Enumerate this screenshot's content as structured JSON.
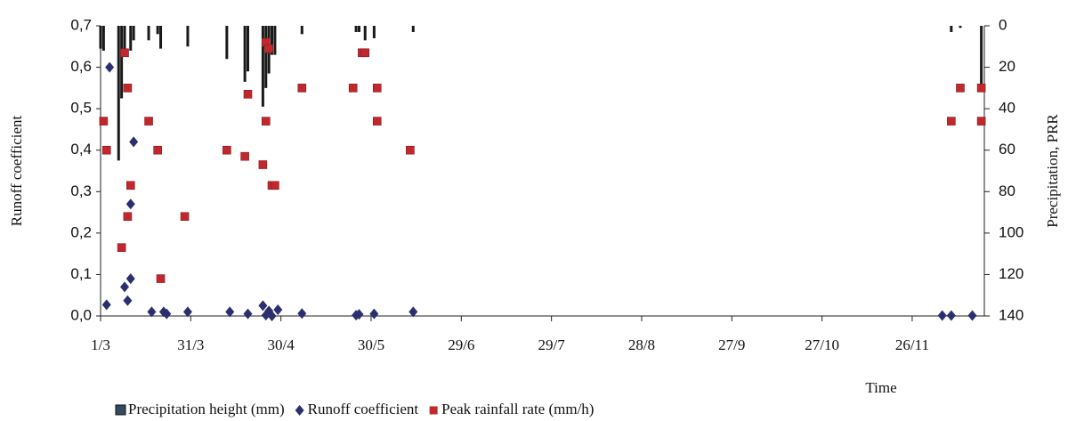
{
  "chart_data": {
    "type": "combo",
    "ylabel": "Runoff coefficient",
    "y2label": "Precipitation, PRR",
    "xlabel": "Time",
    "xlim": [
      0,
      294
    ],
    "xticks": [
      {
        "value": 0,
        "label": "1/3"
      },
      {
        "value": 30,
        "label": "31/3"
      },
      {
        "value": 60,
        "label": "30/4"
      },
      {
        "value": 90,
        "label": "30/5"
      },
      {
        "value": 120,
        "label": "29/6"
      },
      {
        "value": 150,
        "label": "29/7"
      },
      {
        "value": 180,
        "label": "28/8"
      },
      {
        "value": 210,
        "label": "27/9"
      },
      {
        "value": 240,
        "label": "27/10"
      },
      {
        "value": 270,
        "label": "26/11"
      }
    ],
    "ylim": [
      0,
      0.7
    ],
    "yticks": [
      {
        "value": 0,
        "label": "0,0"
      },
      {
        "value": 0.1,
        "label": "0,1"
      },
      {
        "value": 0.2,
        "label": "0,2"
      },
      {
        "value": 0.3,
        "label": "0,3"
      },
      {
        "value": 0.4,
        "label": "0,4"
      },
      {
        "value": 0.5,
        "label": "0,5"
      },
      {
        "value": 0.6,
        "label": "0,6"
      },
      {
        "value": 0.7,
        "label": "0,7"
      }
    ],
    "y2lim": [
      0,
      140
    ],
    "y2_inverted": true,
    "y2ticks": [
      0,
      20,
      40,
      60,
      80,
      100,
      120,
      140
    ],
    "series": [
      {
        "name": "Precipitation height (mm)",
        "type": "bar",
        "axis": "y2",
        "color": "#1a1a1a",
        "legend_color": "#34495e",
        "x": [
          0,
          1,
          6,
          7,
          8,
          10,
          11,
          16,
          19,
          20,
          29,
          42,
          48,
          49,
          54,
          55,
          56,
          57,
          58,
          67,
          85,
          86,
          88,
          91,
          104,
          283,
          286,
          293
        ],
        "values": [
          11,
          12,
          65,
          35,
          13,
          12,
          7,
          7,
          4,
          11,
          10,
          16,
          27,
          22,
          39,
          30,
          23,
          14,
          14,
          4,
          3,
          3,
          7,
          6,
          3,
          3,
          1,
          30
        ]
      },
      {
        "name": "Runoff coefficient",
        "type": "scatter",
        "marker": "diamond",
        "color": "#2b2f6e",
        "x": [
          2,
          3,
          8,
          9,
          10,
          10,
          11,
          17,
          21,
          22,
          29,
          43,
          49,
          54,
          55,
          56,
          57,
          59,
          67,
          85,
          86,
          91,
          104,
          280,
          283,
          290
        ],
        "values": [
          0.027,
          0.6,
          0.07,
          0.037,
          0.27,
          0.09,
          0.42,
          0.01,
          0.01,
          0.005,
          0.01,
          0.01,
          0.005,
          0.025,
          0.002,
          0.012,
          0,
          0.015,
          0.006,
          0.002,
          0.004,
          0.005,
          0.01,
          0.001,
          0.001,
          0.001
        ]
      },
      {
        "name": "Peak rainfall rate (mm/h)",
        "type": "scatter",
        "marker": "square",
        "axis": "y2",
        "color": "#c0282d",
        "x": [
          1,
          2,
          7,
          8,
          9,
          9,
          10,
          16,
          19,
          20,
          28,
          42,
          48,
          49,
          54,
          55,
          55,
          56,
          57,
          58,
          67,
          84,
          87,
          88,
          92,
          92,
          103,
          283,
          286,
          293,
          293
        ],
        "values": [
          46,
          60,
          107,
          13,
          30,
          92,
          77,
          46,
          60,
          122,
          92,
          60,
          63,
          33,
          67,
          8,
          46,
          11,
          77,
          77,
          30,
          30,
          13,
          13,
          30,
          46,
          60,
          46,
          30,
          30,
          46
        ]
      }
    ]
  }
}
